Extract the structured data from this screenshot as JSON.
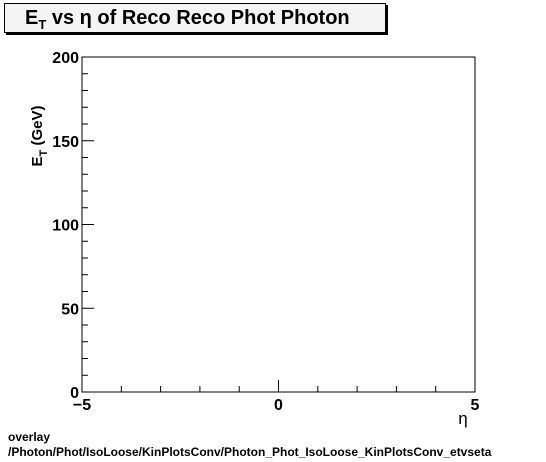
{
  "chart_data": {
    "type": "scatter",
    "title": "E_T vs η of Reco Reco Phot Photon",
    "title_parts": {
      "main": "E",
      "sub": "T",
      "rest": " vs  η of Reco Reco Phot Photon"
    },
    "xlabel": "η",
    "ylabel": "E_T (GeV)",
    "ylabel_parts": {
      "main": "E",
      "sub": "T",
      "rest": " (GeV)"
    },
    "xlim": [
      -5,
      5
    ],
    "ylim": [
      0,
      200
    ],
    "x_ticks": [
      -5,
      0,
      5
    ],
    "x_tick_labels": [
      "−5",
      "0",
      "5"
    ],
    "y_ticks": [
      0,
      50,
      100,
      150,
      200
    ],
    "y_tick_labels": [
      "0",
      "50",
      "100",
      "150",
      "200"
    ],
    "grid": false,
    "legend": "none",
    "series": [
      {
        "x": [],
        "y": []
      }
    ]
  },
  "footer": {
    "line1": "overlay",
    "line2": "/Photon/Phot/IsoLoose/KinPlotsConv/Photon_Phot_IsoLoose_KinPlotsConv_etvseta"
  }
}
